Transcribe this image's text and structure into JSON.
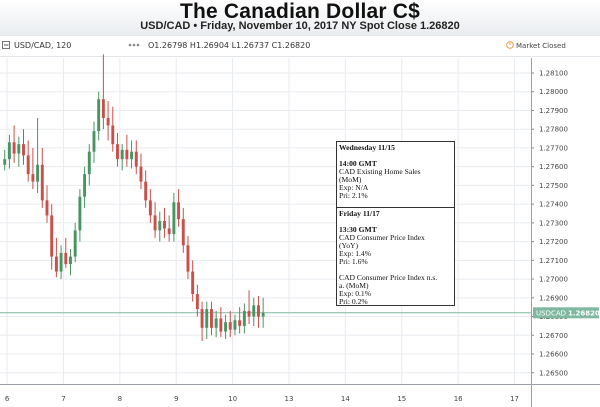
{
  "header": {
    "title": "The Canadian Dollar C$",
    "subtitle": "USD/CAD • Friday, November 10, 2017 NY Spot Close 1.26820"
  },
  "toolbar": {
    "symbol_label": "USD/CAD, 120",
    "ohlc": "O1.26798 H1.26904 L1.26737 C1.26820",
    "market_status": "Market Closed",
    "status_icon": "clock-icon",
    "collapse_icon": "minus-icon"
  },
  "colors": {
    "up": "#4a9463",
    "down": "#c9504a",
    "grid": "#e8ebef",
    "price_line": "#7fb8a0"
  },
  "events": [
    {
      "lines": [
        "Wednesday 11/15",
        "",
        "14:00 GMT",
        "CAD Existing Home Sales",
        "(MoM)",
        "Exp: N/A",
        "Pri: 2.1%"
      ]
    },
    {
      "lines": [
        "Friday 11/17",
        "",
        "13:30 GMT",
        "CAD Consumer Price Index",
        "(YoY)",
        "Exp: 1.4%",
        "Pri: 1.6%",
        "",
        "CAD Consumer Price Index n.s.",
        "a. (MoM)",
        "Exp: 0.1%",
        "Pri: 0.2%"
      ]
    }
  ],
  "chart_data": {
    "type": "candlestick",
    "title": "USD/CAD, 120",
    "xlabel": "",
    "ylabel": "",
    "x_ticks": [
      "6",
      "7",
      "8",
      "9",
      "10",
      "13",
      "14",
      "15",
      "16",
      "17"
    ],
    "x_tick_positions": [
      0.5,
      12.5,
      24.5,
      36.5,
      48.5,
      60.5,
      72.5,
      84.5,
      96.5,
      108.5
    ],
    "xlim": [
      -1,
      112
    ],
    "y_ticks": [
      "1.28100",
      "1.28000",
      "1.27900",
      "1.27800",
      "1.27700",
      "1.27600",
      "1.27500",
      "1.27400",
      "1.27300",
      "1.27200",
      "1.27100",
      "1.27000",
      "1.26900",
      "1.26800",
      "1.26700",
      "1.26600",
      "1.26500"
    ],
    "ylim": [
      1.2644,
      1.2818
    ],
    "grid": true,
    "last_price": {
      "label": "USDCAD",
      "value": "1.26820",
      "y": 1.2682
    },
    "candles": [
      {
        "o": 1.2761,
        "h": 1.2769,
        "l": 1.2758,
        "c": 1.2764
      },
      {
        "o": 1.2764,
        "h": 1.2777,
        "l": 1.2759,
        "c": 1.2773
      },
      {
        "o": 1.2773,
        "h": 1.2782,
        "l": 1.2762,
        "c": 1.2767
      },
      {
        "o": 1.2767,
        "h": 1.2776,
        "l": 1.276,
        "c": 1.2772
      },
      {
        "o": 1.2772,
        "h": 1.278,
        "l": 1.2761,
        "c": 1.2766
      },
      {
        "o": 1.2766,
        "h": 1.2774,
        "l": 1.2752,
        "c": 1.2756
      },
      {
        "o": 1.2756,
        "h": 1.277,
        "l": 1.2748,
        "c": 1.2752
      },
      {
        "o": 1.2752,
        "h": 1.2786,
        "l": 1.2746,
        "c": 1.2761
      },
      {
        "o": 1.2761,
        "h": 1.277,
        "l": 1.2738,
        "c": 1.2742
      },
      {
        "o": 1.2742,
        "h": 1.275,
        "l": 1.273,
        "c": 1.2734
      },
      {
        "o": 1.2734,
        "h": 1.274,
        "l": 1.2705,
        "c": 1.2712
      },
      {
        "o": 1.2712,
        "h": 1.2722,
        "l": 1.2701,
        "c": 1.2704
      },
      {
        "o": 1.2704,
        "h": 1.2718,
        "l": 1.27,
        "c": 1.2714
      },
      {
        "o": 1.2714,
        "h": 1.2722,
        "l": 1.2706,
        "c": 1.2708
      },
      {
        "o": 1.2708,
        "h": 1.2716,
        "l": 1.2702,
        "c": 1.2712
      },
      {
        "o": 1.2712,
        "h": 1.273,
        "l": 1.2709,
        "c": 1.2726
      },
      {
        "o": 1.2726,
        "h": 1.2748,
        "l": 1.272,
        "c": 1.2744
      },
      {
        "o": 1.2744,
        "h": 1.276,
        "l": 1.2738,
        "c": 1.2756
      },
      {
        "o": 1.2756,
        "h": 1.2772,
        "l": 1.275,
        "c": 1.2768
      },
      {
        "o": 1.2768,
        "h": 1.2784,
        "l": 1.2762,
        "c": 1.2779
      },
      {
        "o": 1.2779,
        "h": 1.28,
        "l": 1.2774,
        "c": 1.2796
      },
      {
        "o": 1.2796,
        "h": 1.282,
        "l": 1.278,
        "c": 1.2786
      },
      {
        "o": 1.2786,
        "h": 1.2795,
        "l": 1.2774,
        "c": 1.2782
      },
      {
        "o": 1.2782,
        "h": 1.2792,
        "l": 1.2768,
        "c": 1.2772
      },
      {
        "o": 1.2772,
        "h": 1.2778,
        "l": 1.276,
        "c": 1.2764
      },
      {
        "o": 1.2764,
        "h": 1.2772,
        "l": 1.2758,
        "c": 1.2769
      },
      {
        "o": 1.2769,
        "h": 1.2777,
        "l": 1.276,
        "c": 1.2764
      },
      {
        "o": 1.2764,
        "h": 1.2774,
        "l": 1.2759,
        "c": 1.2768
      },
      {
        "o": 1.2768,
        "h": 1.2774,
        "l": 1.2756,
        "c": 1.276
      },
      {
        "o": 1.276,
        "h": 1.2767,
        "l": 1.2748,
        "c": 1.2752
      },
      {
        "o": 1.2752,
        "h": 1.2758,
        "l": 1.2738,
        "c": 1.2742
      },
      {
        "o": 1.2742,
        "h": 1.2748,
        "l": 1.273,
        "c": 1.2734
      },
      {
        "o": 1.2734,
        "h": 1.2741,
        "l": 1.2722,
        "c": 1.2726
      },
      {
        "o": 1.2726,
        "h": 1.2736,
        "l": 1.272,
        "c": 1.2731
      },
      {
        "o": 1.2731,
        "h": 1.2738,
        "l": 1.2722,
        "c": 1.2727
      },
      {
        "o": 1.2727,
        "h": 1.2734,
        "l": 1.272,
        "c": 1.2724
      },
      {
        "o": 1.2724,
        "h": 1.2746,
        "l": 1.272,
        "c": 1.2741
      },
      {
        "o": 1.2741,
        "h": 1.2748,
        "l": 1.2728,
        "c": 1.2732
      },
      {
        "o": 1.2732,
        "h": 1.2738,
        "l": 1.2714,
        "c": 1.2718
      },
      {
        "o": 1.2718,
        "h": 1.2723,
        "l": 1.27,
        "c": 1.2704
      },
      {
        "o": 1.2704,
        "h": 1.271,
        "l": 1.2688,
        "c": 1.2692
      },
      {
        "o": 1.2692,
        "h": 1.2697,
        "l": 1.268,
        "c": 1.2684
      },
      {
        "o": 1.2684,
        "h": 1.2688,
        "l": 1.2667,
        "c": 1.2674
      },
      {
        "o": 1.2674,
        "h": 1.2688,
        "l": 1.2668,
        "c": 1.2684
      },
      {
        "o": 1.2684,
        "h": 1.2688,
        "l": 1.267,
        "c": 1.2674
      },
      {
        "o": 1.2674,
        "h": 1.2683,
        "l": 1.2669,
        "c": 1.2679
      },
      {
        "o": 1.2679,
        "h": 1.2685,
        "l": 1.2669,
        "c": 1.2672
      },
      {
        "o": 1.2672,
        "h": 1.2681,
        "l": 1.2668,
        "c": 1.2677
      },
      {
        "o": 1.2677,
        "h": 1.2683,
        "l": 1.2669,
        "c": 1.2673
      },
      {
        "o": 1.2673,
        "h": 1.2681,
        "l": 1.267,
        "c": 1.2678
      },
      {
        "o": 1.2678,
        "h": 1.2685,
        "l": 1.2671,
        "c": 1.2675
      },
      {
        "o": 1.2675,
        "h": 1.2687,
        "l": 1.2671,
        "c": 1.2683
      },
      {
        "o": 1.2683,
        "h": 1.2694,
        "l": 1.2676,
        "c": 1.268
      },
      {
        "o": 1.268,
        "h": 1.269,
        "l": 1.2675,
        "c": 1.2686
      },
      {
        "o": 1.2686,
        "h": 1.2691,
        "l": 1.2674,
        "c": 1.268
      },
      {
        "o": 1.268,
        "h": 1.269,
        "l": 1.2674,
        "c": 1.2682
      }
    ]
  }
}
